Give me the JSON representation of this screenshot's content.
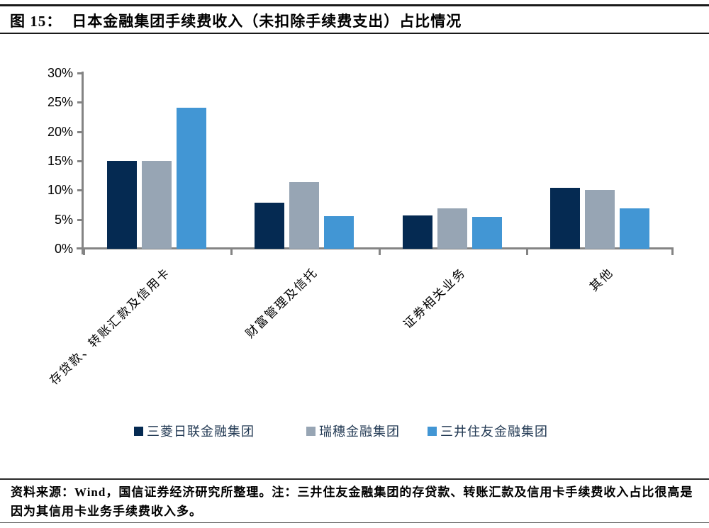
{
  "title": {
    "figure_label": "图 15：",
    "text": "日本金融集团手续费收入（未扣除手续费支出）占比情况"
  },
  "chart_data": {
    "type": "bar",
    "title": "日本金融集团手续费收入（未扣除手续费支出）占比情况",
    "categories": [
      "存贷款、转账汇款及信用卡",
      "财富管理及信托",
      "证券相关业务",
      "其他"
    ],
    "series": [
      {
        "name": "三菱日联金融集团",
        "color": "#052a52",
        "values": [
          15.0,
          7.9,
          5.7,
          10.4
        ]
      },
      {
        "name": "瑞穗金融集团",
        "color": "#97a5b4",
        "values": [
          15.0,
          11.4,
          6.9,
          10.0
        ]
      },
      {
        "name": "三井住友金融集团",
        "color": "#4296d4",
        "values": [
          24.1,
          5.6,
          5.4,
          6.9
        ]
      }
    ],
    "xlabel": "",
    "ylabel": "",
    "ylim": [
      0,
      30
    ],
    "ytick_step": 5,
    "ytick_labels": [
      "0%",
      "5%",
      "10%",
      "15%",
      "20%",
      "25%",
      "30%"
    ],
    "grid": false,
    "legend_position": "bottom",
    "bar_label_rotation_deg": -44,
    "axis_color": "#848484"
  },
  "footer": {
    "text": "资料来源：Wind，国信证券经济研究所整理。注：三井住友金融集团的存贷款、转账汇款及信用卡手续费收入占比很高是因为其信用卡业务手续费收入多。"
  }
}
